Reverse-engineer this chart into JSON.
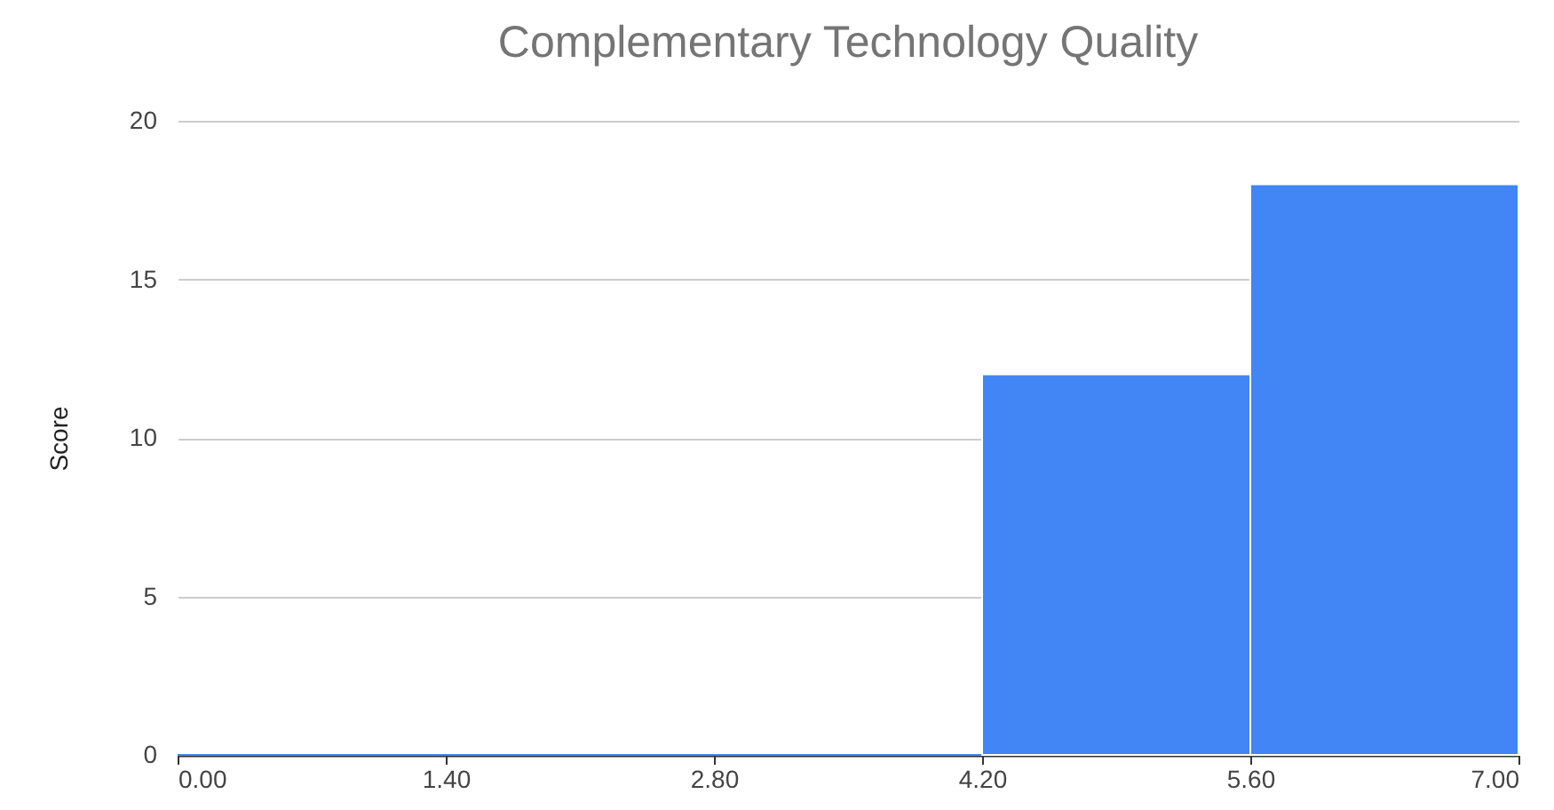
{
  "chart_data": {
    "type": "histogram",
    "title": "Complementary Technology Quality",
    "ylabel": "Score",
    "bins": [
      0,
      1.4,
      2.8,
      4.2,
      5.6,
      7.0
    ],
    "values": [
      0,
      0,
      0,
      12,
      18
    ],
    "color": "#4285f4",
    "xlim": [
      0,
      7.0
    ],
    "xticks": [
      {
        "value": 0,
        "label": "0.00"
      },
      {
        "value": 1.4,
        "label": "1.40"
      },
      {
        "value": 2.8,
        "label": "2.80"
      },
      {
        "value": 4.2,
        "label": "4.20"
      },
      {
        "value": 5.6,
        "label": "5.60"
      },
      {
        "value": 7.0,
        "label": "7.00"
      }
    ],
    "ylim": [
      0,
      20
    ],
    "yticks": [
      0,
      5,
      10,
      15,
      20
    ],
    "grid": "y"
  }
}
